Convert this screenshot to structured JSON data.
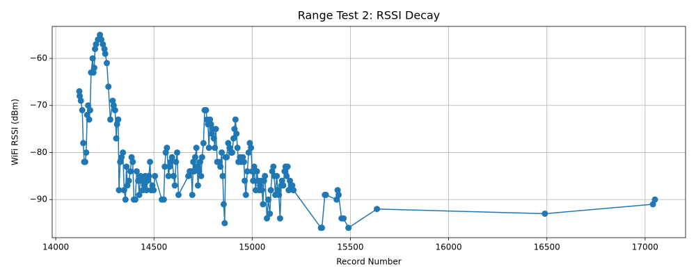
{
  "chart_data": {
    "type": "line",
    "title": "Range Test 2: RSSI Decay",
    "xlabel": "Record Number",
    "ylabel": "WiFi RSSI (dBm)",
    "color": "#1f77b4",
    "grid": true,
    "xlim": [
      13982,
      17206
    ],
    "ylim": [
      -98.1,
      -53.2
    ],
    "xticks": [
      14000,
      14500,
      15000,
      15500,
      16000,
      16500,
      17000
    ],
    "yticks": [
      {
        "value": -90,
        "label": "−90"
      },
      {
        "value": -80,
        "label": "−80"
      },
      {
        "value": -70,
        "label": "−70"
      },
      {
        "value": -60,
        "label": "−60"
      }
    ],
    "x": [
      14120,
      14122,
      14128,
      14135,
      14140,
      14145,
      14150,
      14155,
      14160,
      14165,
      14170,
      14175,
      14180,
      14188,
      14192,
      14196,
      14200,
      14205,
      14215,
      14225,
      14232,
      14240,
      14248,
      14252,
      14260,
      14268,
      14278,
      14290,
      14295,
      14302,
      14308,
      14312,
      14318,
      14322,
      14328,
      14335,
      14342,
      14348,
      14355,
      14360,
      14365,
      14372,
      14380,
      14386,
      14392,
      14398,
      14405,
      14412,
      14420,
      14425,
      14432,
      14438,
      14444,
      14450,
      14455,
      14462,
      14468,
      14474,
      14480,
      14486,
      14492,
      14498,
      14505,
      14540,
      14550,
      14555,
      14560,
      14566,
      14574,
      14580,
      14585,
      14592,
      14600,
      14606,
      14612,
      14618,
      14625,
      14675,
      14682,
      14690,
      14695,
      14700,
      14705,
      14710,
      14716,
      14720,
      14724,
      14730,
      14735,
      14740,
      14745,
      14752,
      14758,
      14765,
      14770,
      14775,
      14780,
      14785,
      14790,
      14795,
      14800,
      14805,
      14810,
      14815,
      14822,
      14830,
      14838,
      14845,
      14850,
      14855,
      14860,
      14865,
      14870,
      14878,
      14885,
      14892,
      14898,
      14905,
      14910,
      14915,
      14920,
      14925,
      14930,
      14938,
      14945,
      14952,
      14958,
      14962,
      14968,
      14975,
      14982,
      14988,
      14994,
      15000,
      15005,
      15010,
      15018,
      15024,
      15030,
      15036,
      15040,
      15045,
      15050,
      15055,
      15060,
      15065,
      15075,
      15082,
      15090,
      15095,
      15102,
      15108,
      15112,
      15118,
      15125,
      15130,
      15136,
      15142,
      15148,
      15152,
      15158,
      15165,
      15170,
      15175,
      15180,
      15186,
      15192,
      15198,
      15204,
      15210,
      15350,
      15355,
      15370,
      15375,
      15430,
      15435,
      15440,
      15455,
      15465,
      15490,
      15635,
      16490,
      17040,
      17050
    ],
    "values": [
      -67,
      -68,
      -69,
      -71,
      -78,
      -82,
      -82,
      -80,
      -72,
      -70,
      -73,
      -71,
      -63,
      -60,
      -63,
      -62,
      -58,
      -57,
      -56,
      -55,
      -56,
      -57,
      -58,
      -59,
      -61,
      -66,
      -73,
      -69,
      -70,
      -71,
      -77,
      -74,
      -73,
      -88,
      -82,
      -81,
      -80,
      -88,
      -90,
      -83,
      -87,
      -86,
      -84,
      -81,
      -82,
      -90,
      -90,
      -84,
      -86,
      -89,
      -85,
      -86,
      -88,
      -87,
      -85,
      -88,
      -86,
      -85,
      -82,
      -88,
      -87,
      -88,
      -85,
      -90,
      -90,
      -83,
      -80,
      -79,
      -85,
      -83,
      -82,
      -81,
      -85,
      -87,
      -82,
      -80,
      -89,
      -85,
      -84,
      -84,
      -89,
      -82,
      -84,
      -81,
      -79,
      -83,
      -87,
      -84,
      -82,
      -85,
      -81,
      -78,
      -71,
      -71,
      -73,
      -74,
      -79,
      -73,
      -74,
      -76,
      -75,
      -77,
      -79,
      -75,
      -82,
      -82,
      -83,
      -80,
      -85,
      -91,
      -95,
      -81,
      -81,
      -78,
      -79,
      -80,
      -80,
      -77,
      -75,
      -73,
      -76,
      -79,
      -82,
      -81,
      -82,
      -81,
      -82,
      -86,
      -89,
      -84,
      -80,
      -78,
      -79,
      -84,
      -86,
      -83,
      -88,
      -84,
      -86,
      -88,
      -87,
      -86,
      -88,
      -91,
      -86,
      -85,
      -94,
      -90,
      -93,
      -88,
      -84,
      -83,
      -85,
      -89,
      -85,
      -88,
      -89,
      -94,
      -87,
      -86,
      -87,
      -84,
      -83,
      -85,
      -83,
      -88,
      -86,
      -87,
      -87,
      -88,
      -96,
      -96,
      -89,
      -89,
      -90,
      -88,
      -89,
      -94,
      -94,
      -96,
      -92,
      -93,
      -91,
      -90
    ]
  }
}
